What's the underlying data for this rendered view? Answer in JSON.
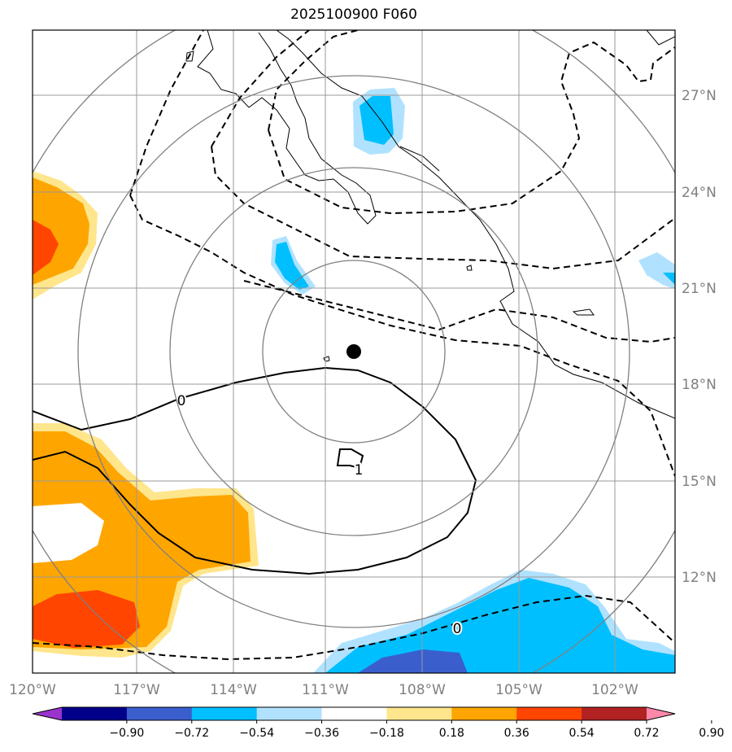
{
  "title": "2025100900 F060",
  "map": {
    "lon_labels": [
      "120°W",
      "117°W",
      "114°W",
      "111°W",
      "108°W",
      "105°W",
      "102°W"
    ],
    "lat_labels": [
      "27°N",
      "24°N",
      "21°N",
      "18°N",
      "15°N",
      "12°N"
    ],
    "contour_labels": [
      "0",
      "1",
      "0"
    ],
    "center_marker": "storm-center"
  },
  "colorbar": {
    "ticks": [
      "−0.90",
      "−0.72",
      "−0.54",
      "−0.36",
      "−0.18",
      "0.18",
      "0.36",
      "0.54",
      "0.72",
      "0.90"
    ],
    "colors": [
      "#9933cc",
      "#00008b",
      "#3a5fcd",
      "#00bfff",
      "#b0e2ff",
      "#ffffff",
      "#ffe68c",
      "#ffa500",
      "#ff4500",
      "#b22222",
      "#ff88aa"
    ]
  },
  "colors": {
    "grid": "#999999",
    "rings": "#808080",
    "axis_text": "#808080"
  }
}
